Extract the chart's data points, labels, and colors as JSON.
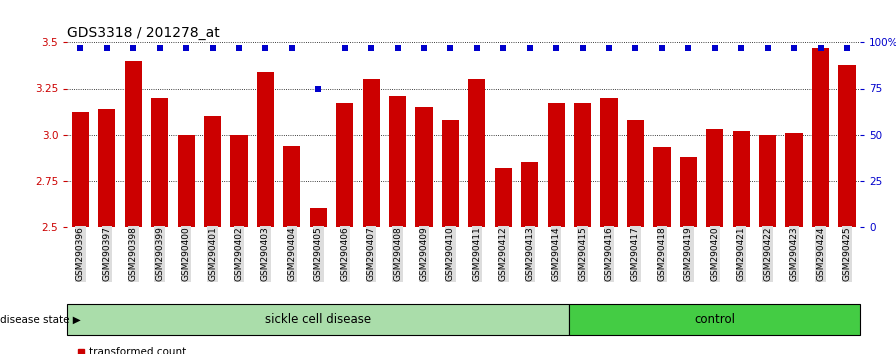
{
  "title": "GDS3318 / 201278_at",
  "samples": [
    "GSM290396",
    "GSM290397",
    "GSM290398",
    "GSM290399",
    "GSM290400",
    "GSM290401",
    "GSM290402",
    "GSM290403",
    "GSM290404",
    "GSM290405",
    "GSM290406",
    "GSM290407",
    "GSM290408",
    "GSM290409",
    "GSM290410",
    "GSM290411",
    "GSM290412",
    "GSM290413",
    "GSM290414",
    "GSM290415",
    "GSM290416",
    "GSM290417",
    "GSM290418",
    "GSM290419",
    "GSM290420",
    "GSM290421",
    "GSM290422",
    "GSM290423",
    "GSM290424",
    "GSM290425"
  ],
  "values": [
    3.12,
    3.14,
    3.4,
    3.2,
    3.0,
    3.1,
    3.0,
    3.34,
    2.94,
    2.6,
    3.17,
    3.3,
    3.21,
    3.15,
    3.08,
    3.3,
    2.82,
    2.85,
    3.17,
    3.17,
    3.2,
    3.08,
    2.93,
    2.88,
    3.03,
    3.02,
    3.0,
    3.01,
    3.47,
    3.38
  ],
  "percentile_values": [
    97,
    97,
    97,
    97,
    97,
    97,
    97,
    97,
    97,
    75,
    97,
    97,
    97,
    97,
    97,
    97,
    97,
    97,
    97,
    97,
    97,
    97,
    97,
    97,
    97,
    97,
    97,
    97,
    97,
    97
  ],
  "sickle_count": 19,
  "control_count": 11,
  "bar_color": "#cc0000",
  "percentile_color": "#0000cc",
  "sickle_color": "#aaddaa",
  "control_color": "#44cc44",
  "ylim_low": 2.5,
  "ylim_high": 3.5,
  "yticks": [
    2.5,
    2.75,
    3.0,
    3.25,
    3.5
  ],
  "right_yticks": [
    0,
    25,
    50,
    75,
    100
  ],
  "right_ylabels": [
    "0",
    "25",
    "50",
    "75",
    "100%"
  ],
  "grid_color": "black",
  "background_color": "#ffffff",
  "title_fontsize": 10,
  "tick_fontsize": 7.5,
  "label_fontsize": 8,
  "bar_width": 0.65
}
